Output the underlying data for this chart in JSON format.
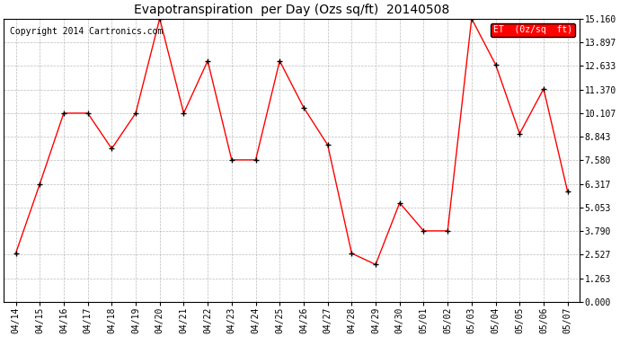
{
  "title": "Evapotranspiration  per Day (Ozs sq/ft)  20140508",
  "copyright": "Copyright 2014 Cartronics.com",
  "legend_label": "ET  (0z/sq  ft)",
  "dates": [
    "04/14",
    "04/15",
    "04/16",
    "04/17",
    "04/18",
    "04/19",
    "04/20",
    "04/21",
    "04/22",
    "04/23",
    "04/24",
    "04/25",
    "04/26",
    "04/27",
    "04/28",
    "04/29",
    "04/30",
    "05/01",
    "05/02",
    "05/03",
    "05/04",
    "05/05",
    "05/06",
    "05/07"
  ],
  "values": [
    2.6,
    6.3,
    10.1,
    10.1,
    8.2,
    10.1,
    15.16,
    10.1,
    12.9,
    7.6,
    7.6,
    12.9,
    10.4,
    8.4,
    2.6,
    2.0,
    5.3,
    3.8,
    3.8,
    15.16,
    12.7,
    9.0,
    11.4,
    5.9
  ],
  "y_ticks": [
    0.0,
    1.263,
    2.527,
    3.79,
    5.053,
    6.317,
    7.58,
    8.843,
    10.107,
    11.37,
    12.633,
    13.897,
    15.16
  ],
  "y_min": 0.0,
  "y_max": 15.16,
  "line_color": "red",
  "marker": "+",
  "marker_color": "black",
  "grid_color": "#aaaaaa",
  "background_color": "#ffffff",
  "plot_bg_color": "#ffffff",
  "title_fontsize": 10,
  "copyright_fontsize": 7,
  "tick_fontsize": 7,
  "legend_bg": "red",
  "legend_text_color": "white"
}
